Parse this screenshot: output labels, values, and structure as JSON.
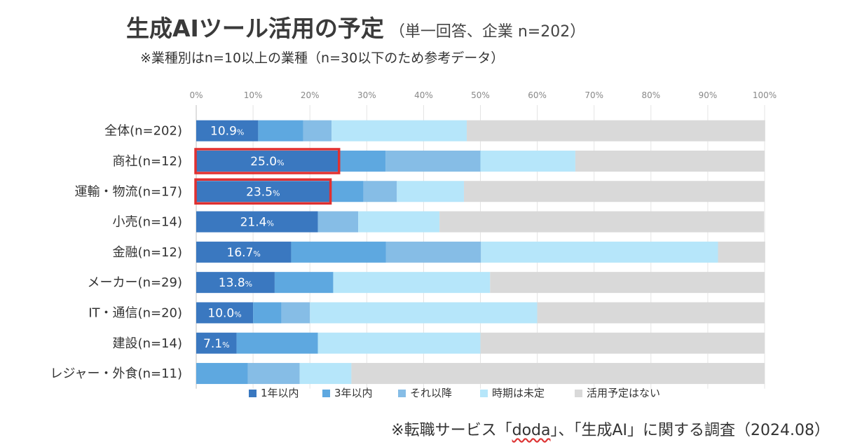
{
  "title": "生成AIツール活用の予定",
  "subtitle": "（単一回答、企業 n=202）",
  "note": "※業種別はn=10以上の業種（n=30以下のため参考データ）",
  "source": {
    "prefix": "※転職サービス「",
    "brand": "doda",
    "suffix": "」、「生成AI」に関する調査（2024.08）"
  },
  "chart_data": {
    "type": "bar",
    "orientation": "horizontal",
    "stacked": true,
    "categories": [
      "全体(n=202)",
      "商社(n=12)",
      "運輸・物流(n=17)",
      "小売(n=14)",
      "金融(n=12)",
      "メーカー(n=29)",
      "IT・通信(n=20)",
      "建設(n=14)",
      "レジャー・外食(n=11)"
    ],
    "series": [
      {
        "name": "1年以内",
        "color": "#3a78c0",
        "values": [
          10.9,
          25.0,
          23.5,
          21.4,
          16.7,
          13.8,
          10.0,
          7.1,
          0
        ]
      },
      {
        "name": "3年以内",
        "color": "#5ea8e0",
        "values": [
          7.9,
          8.3,
          5.9,
          0,
          16.7,
          10.3,
          5.0,
          14.3,
          9.1
        ]
      },
      {
        "name": "それ以降",
        "color": "#86bde6",
        "values": [
          5.0,
          16.7,
          5.9,
          7.1,
          16.7,
          0,
          5.0,
          0,
          9.1
        ]
      },
      {
        "name": "時期は未定",
        "color": "#b6e6fa",
        "values": [
          23.8,
          16.7,
          11.8,
          14.3,
          41.7,
          27.6,
          40.0,
          28.6,
          9.1
        ]
      },
      {
        "name": "活用予定はない",
        "color": "#d9d9d9",
        "values": [
          52.5,
          33.3,
          52.9,
          57.1,
          8.3,
          48.3,
          40.0,
          50.0,
          72.7
        ]
      }
    ],
    "data_labels": [
      "10.9",
      "25.0",
      "23.5",
      "21.4",
      "16.7",
      "13.8",
      "10.0",
      "7.1",
      ""
    ],
    "data_label_unit": "%",
    "highlighted": [
      "商社(n=12)",
      "運輸・物流(n=17)"
    ],
    "highlight_color": "#e03030",
    "xlim": [
      0,
      100
    ],
    "xticks": [
      "0%",
      "10%",
      "20%",
      "30%",
      "40%",
      "50%",
      "60%",
      "70%",
      "80%",
      "90%",
      "100%"
    ],
    "grid": true,
    "legend_position": "bottom"
  }
}
